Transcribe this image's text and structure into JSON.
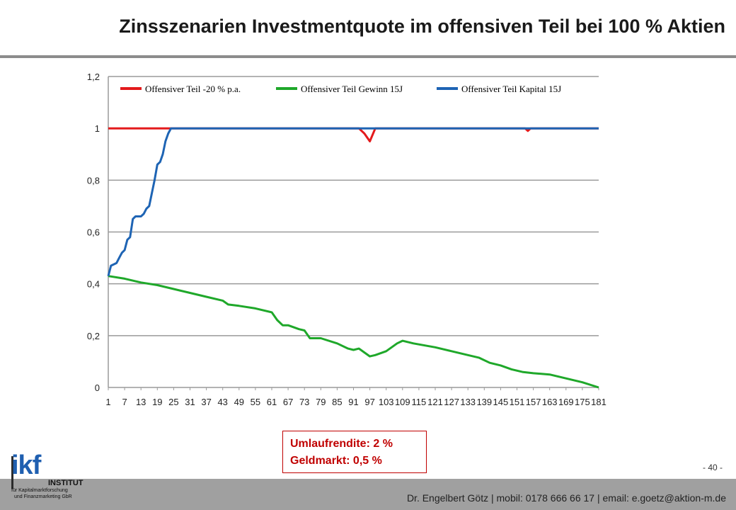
{
  "slide": {
    "title": "Zinsszenarien Investmentquote im offensiven Teil bei 100 % Aktien",
    "info_line1": "Umlaufrendite: 2 %",
    "info_line2": "Geldmarkt: 0,5 %",
    "page_number": "- 40 -",
    "footer": "Dr. Engelbert Götz  |  mobil: 0178 666 66 17  |  email: e.goetz@aktion-m.de",
    "logo": {
      "brand": "ikf",
      "institute": "INSTITUT",
      "sub1": "für Kapitalmarktforschung",
      "sub2": "und Finanzmarketing GbR"
    },
    "colors": {
      "rule": "#8c8c8c",
      "footer_bg": "#a0a0a0",
      "info_red": "#c00000",
      "logo_blue": "#1f5fb0"
    }
  },
  "chart_data": {
    "type": "line",
    "title": "",
    "xlabel": "",
    "ylabel": "",
    "ylim": [
      0,
      1.2
    ],
    "xlim": [
      1,
      181
    ],
    "y_ticks": [
      "0",
      "0,2",
      "0,4",
      "0,6",
      "0,8",
      "1",
      "1,2"
    ],
    "y_tick_values": [
      0,
      0.2,
      0.4,
      0.6,
      0.8,
      1.0,
      1.2
    ],
    "x_ticks": [
      "1",
      "7",
      "13",
      "19",
      "25",
      "31",
      "37",
      "43",
      "49",
      "55",
      "61",
      "67",
      "73",
      "79",
      "85",
      "91",
      "97",
      "103",
      "109",
      "115",
      "121",
      "127",
      "133",
      "139",
      "145",
      "151",
      "157",
      "163",
      "169",
      "175",
      "181"
    ],
    "grid": "horizontal",
    "legend_position": "top",
    "series": [
      {
        "name": "Offensiver Teil -20 % p.a.",
        "color": "#e31a1c",
        "points": [
          [
            1,
            1.0
          ],
          [
            93,
            1.0
          ],
          [
            95,
            0.98
          ],
          [
            97,
            0.95
          ],
          [
            99,
            1.0
          ],
          [
            154,
            1.0
          ],
          [
            155,
            0.99
          ],
          [
            156,
            1.0
          ],
          [
            181,
            1.0
          ]
        ]
      },
      {
        "name": "Offensiver Teil Gewinn 15J",
        "color": "#1fa82a",
        "points": [
          [
            1,
            0.43
          ],
          [
            7,
            0.42
          ],
          [
            13,
            0.405
          ],
          [
            19,
            0.395
          ],
          [
            25,
            0.38
          ],
          [
            31,
            0.365
          ],
          [
            37,
            0.35
          ],
          [
            43,
            0.335
          ],
          [
            45,
            0.32
          ],
          [
            49,
            0.315
          ],
          [
            55,
            0.305
          ],
          [
            61,
            0.29
          ],
          [
            63,
            0.26
          ],
          [
            65,
            0.24
          ],
          [
            67,
            0.24
          ],
          [
            71,
            0.225
          ],
          [
            73,
            0.22
          ],
          [
            75,
            0.19
          ],
          [
            79,
            0.19
          ],
          [
            85,
            0.17
          ],
          [
            89,
            0.15
          ],
          [
            91,
            0.145
          ],
          [
            93,
            0.15
          ],
          [
            95,
            0.135
          ],
          [
            97,
            0.12
          ],
          [
            99,
            0.125
          ],
          [
            103,
            0.14
          ],
          [
            107,
            0.17
          ],
          [
            109,
            0.18
          ],
          [
            113,
            0.17
          ],
          [
            121,
            0.155
          ],
          [
            127,
            0.14
          ],
          [
            133,
            0.125
          ],
          [
            137,
            0.115
          ],
          [
            141,
            0.095
          ],
          [
            145,
            0.085
          ],
          [
            149,
            0.07
          ],
          [
            153,
            0.06
          ],
          [
            157,
            0.055
          ],
          [
            163,
            0.05
          ],
          [
            169,
            0.035
          ],
          [
            175,
            0.02
          ],
          [
            181,
            0.0
          ]
        ]
      },
      {
        "name": "Offensiver Teil Kapital 15J",
        "color": "#1e64b4",
        "points": [
          [
            1,
            0.43
          ],
          [
            2,
            0.47
          ],
          [
            4,
            0.48
          ],
          [
            5,
            0.5
          ],
          [
            6,
            0.52
          ],
          [
            7,
            0.53
          ],
          [
            8,
            0.57
          ],
          [
            9,
            0.58
          ],
          [
            10,
            0.65
          ],
          [
            11,
            0.66
          ],
          [
            13,
            0.66
          ],
          [
            14,
            0.67
          ],
          [
            15,
            0.69
          ],
          [
            16,
            0.7
          ],
          [
            17,
            0.75
          ],
          [
            18,
            0.8
          ],
          [
            19,
            0.86
          ],
          [
            20,
            0.87
          ],
          [
            21,
            0.9
          ],
          [
            22,
            0.95
          ],
          [
            23,
            0.98
          ],
          [
            24,
            1.0
          ],
          [
            181,
            1.0
          ]
        ]
      }
    ]
  }
}
